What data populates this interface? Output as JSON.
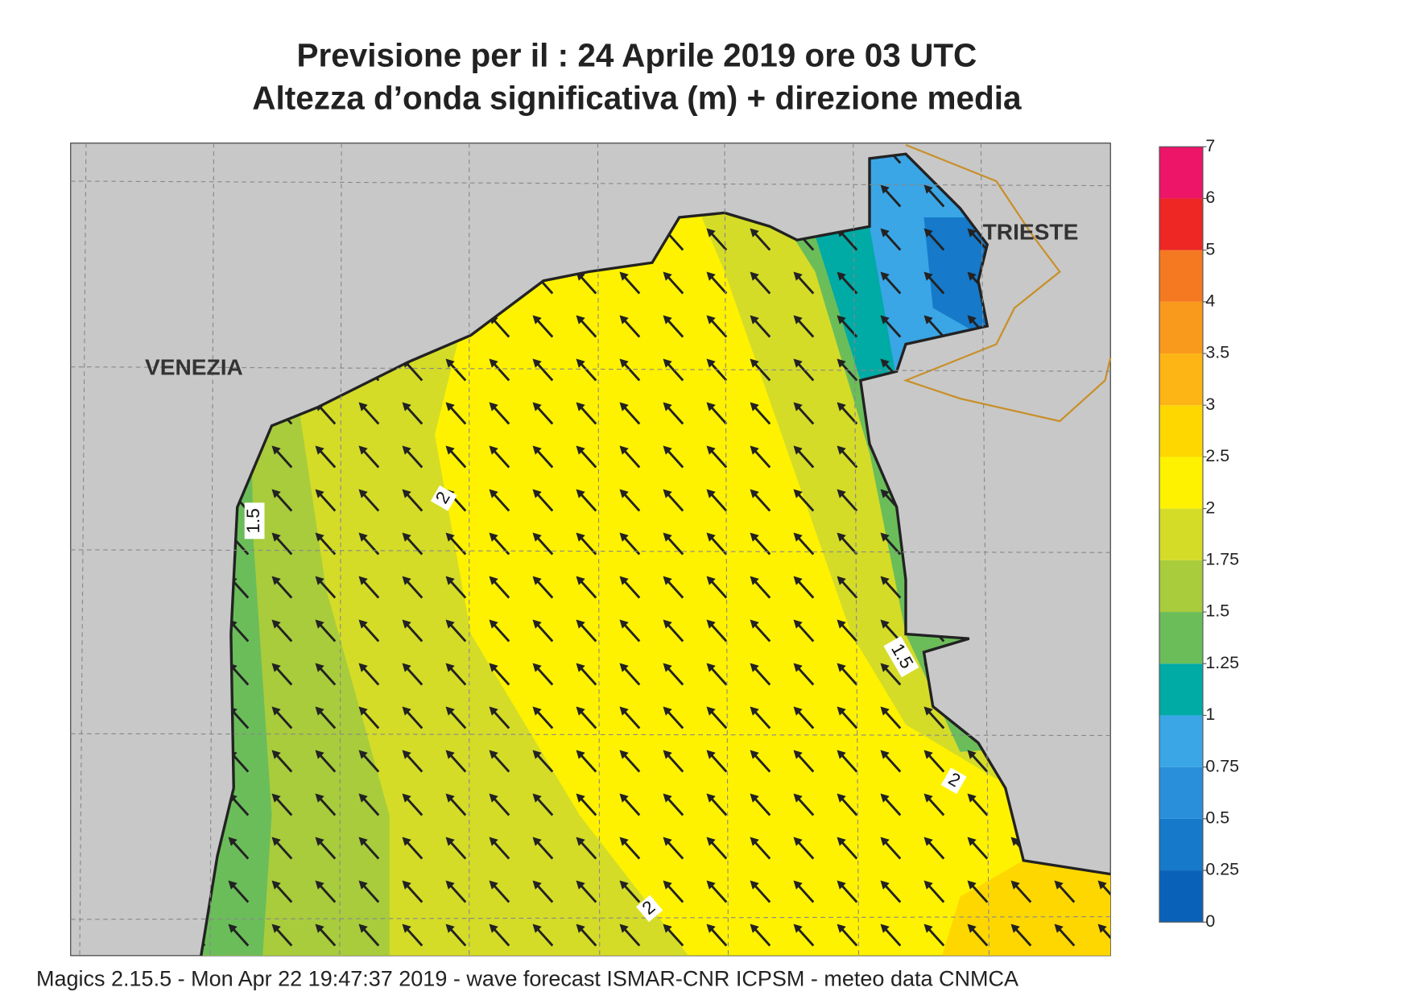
{
  "header": {
    "title_line1": "Previsione per il  :  24   Aprile  2019   ore 03 UTC",
    "title_line2": "Altezza d’onda significativa (m) + direzione media"
  },
  "map": {
    "places": [
      "VENEZIA",
      "TRIESTE"
    ],
    "contour_labels": [
      "1.5",
      "2",
      "1.5",
      "2",
      "2"
    ]
  },
  "legend": {
    "ticks": [
      0,
      0.25,
      0.5,
      0.75,
      1,
      1.25,
      1.5,
      1.75,
      2,
      2.5,
      3,
      3.5,
      4,
      5,
      6,
      7
    ],
    "colors": [
      "#0a62b8",
      "#1679c9",
      "#2a8fdb",
      "#3aa6e6",
      "#00aaa5",
      "#6bbd5a",
      "#a8cc3c",
      "#d4dc28",
      "#fff200",
      "#ffd700",
      "#fdb515",
      "#f99a1c",
      "#f47920",
      "#ee2624",
      "#ec1568"
    ]
  },
  "footer": "Magics 2.15.5 - Mon Apr 22 19:47:37 2019 - wave forecast  ISMAR-CNR  ICPSM - meteo data   CNMCA"
}
